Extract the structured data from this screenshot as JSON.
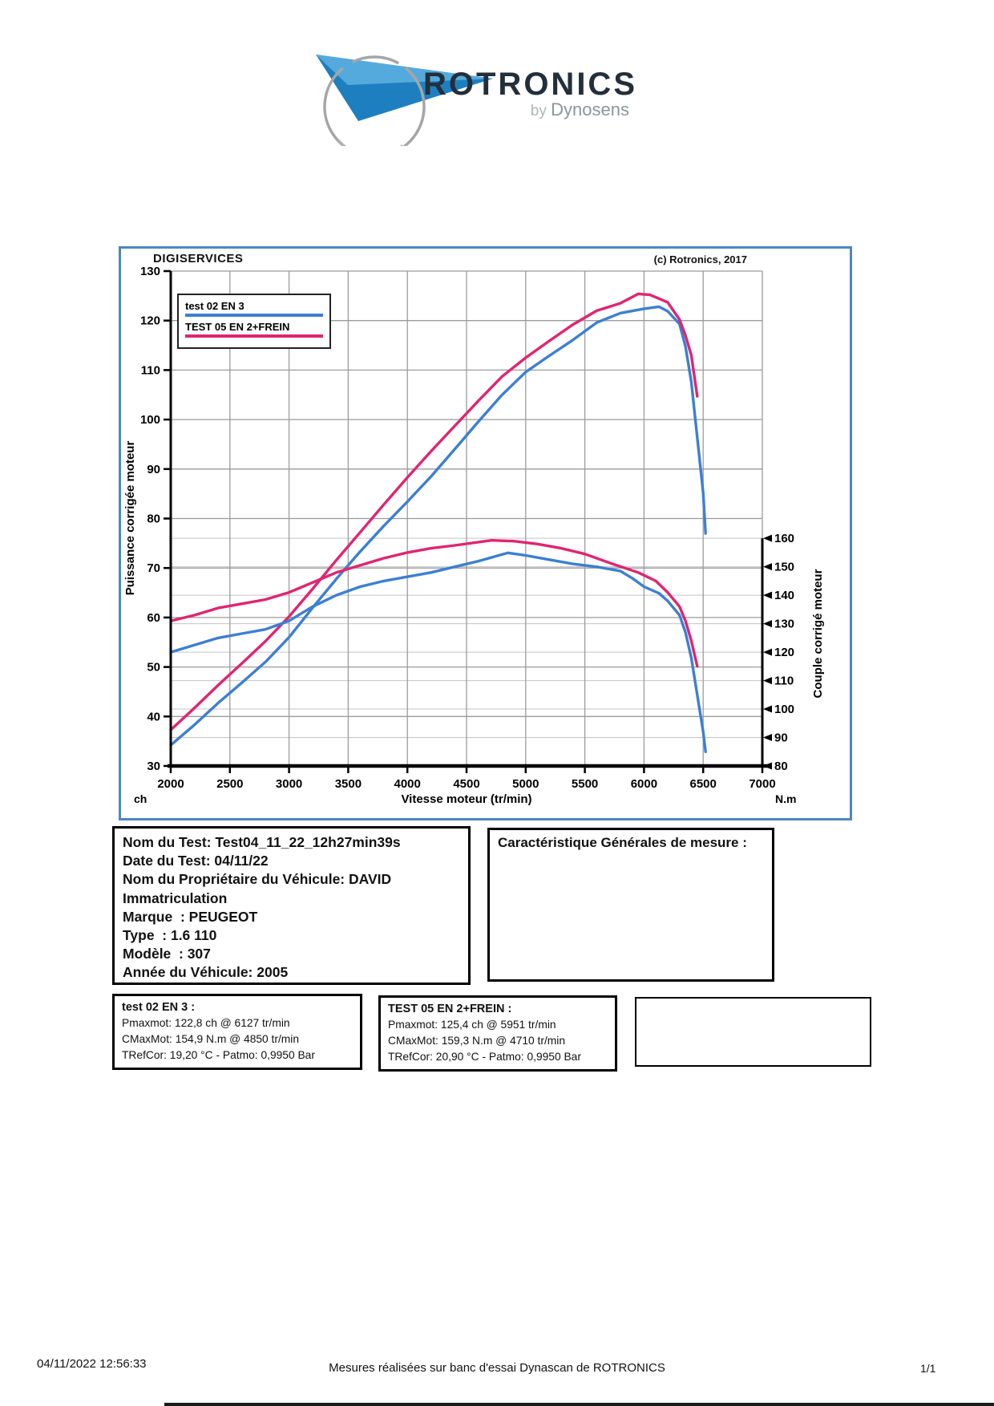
{
  "logo": {
    "brand": "ROTRONICS",
    "byline_by": "by ",
    "byline_name": "Dynosens"
  },
  "chart": {
    "watermark": "DIGISERVICES",
    "copyright": "(c) Rotronics, 2017",
    "legend": [
      {
        "label": "test 02 EN 3",
        "color": "#3d7fd2"
      },
      {
        "label": "TEST 05 EN 2+FREIN",
        "color": "#e02570"
      }
    ]
  },
  "chart_data": {
    "type": "line",
    "xlabel": "Vitesse moteur (tr/min)",
    "ylabel_left": "Puissance corrigée moteur",
    "ylabel_right": "Couple corrigé moteur",
    "left_unit": "ch",
    "right_unit": "N.m",
    "xlim": [
      2000,
      7000
    ],
    "ylim_left": [
      30,
      130
    ],
    "ylim_right": [
      80,
      160
    ],
    "right_axis_top_ch": 76,
    "x_ticks": [
      2000,
      2500,
      3000,
      3500,
      4000,
      4500,
      5000,
      5500,
      6000,
      6500,
      7000
    ],
    "y_ticks_left": [
      130,
      120,
      110,
      100,
      90,
      80,
      70,
      60,
      50,
      40,
      30
    ],
    "y_ticks_right": [
      160,
      150,
      140,
      130,
      120,
      110,
      100,
      90,
      80
    ],
    "grid": true,
    "legend_position": "top-left",
    "series": [
      {
        "name": "test 02 EN 3 - puissance (ch)",
        "axis": "left",
        "color": "#3d7fd2",
        "points": [
          [
            2000,
            34.2
          ],
          [
            2200,
            38.3
          ],
          [
            2400,
            42.7
          ],
          [
            2600,
            46.8
          ],
          [
            2800,
            51.0
          ],
          [
            3000,
            56.0
          ],
          [
            3200,
            62.0
          ],
          [
            3400,
            67.8
          ],
          [
            3600,
            73.3
          ],
          [
            3800,
            78.5
          ],
          [
            4000,
            83.4
          ],
          [
            4200,
            88.5
          ],
          [
            4400,
            94.0
          ],
          [
            4600,
            99.6
          ],
          [
            4800,
            105.0
          ],
          [
            5000,
            109.6
          ],
          [
            5200,
            112.9
          ],
          [
            5400,
            116.1
          ],
          [
            5600,
            119.6
          ],
          [
            5800,
            121.5
          ],
          [
            6000,
            122.4
          ],
          [
            6127,
            122.8
          ],
          [
            6200,
            121.9
          ],
          [
            6300,
            119.3
          ],
          [
            6350,
            114.8
          ],
          [
            6400,
            107.6
          ],
          [
            6450,
            96.4
          ],
          [
            6500,
            85.2
          ],
          [
            6520,
            77.0
          ]
        ]
      },
      {
        "name": "TEST 05 EN 2+FREIN - puissance (ch)",
        "axis": "left",
        "color": "#e02570",
        "points": [
          [
            2000,
            37.3
          ],
          [
            2200,
            41.7
          ],
          [
            2400,
            46.3
          ],
          [
            2600,
            50.7
          ],
          [
            2800,
            55.2
          ],
          [
            3000,
            60.2
          ],
          [
            3200,
            65.8
          ],
          [
            3400,
            71.6
          ],
          [
            3600,
            77.2
          ],
          [
            3800,
            82.8
          ],
          [
            4000,
            88.3
          ],
          [
            4200,
            93.6
          ],
          [
            4400,
            98.7
          ],
          [
            4600,
            103.8
          ],
          [
            4800,
            108.7
          ],
          [
            5000,
            112.5
          ],
          [
            5200,
            115.9
          ],
          [
            5400,
            119.2
          ],
          [
            5600,
            122.0
          ],
          [
            5800,
            123.5
          ],
          [
            5951,
            125.4
          ],
          [
            6050,
            125.2
          ],
          [
            6200,
            123.7
          ],
          [
            6300,
            120.2
          ],
          [
            6350,
            117.0
          ],
          [
            6400,
            113.0
          ],
          [
            6450,
            104.7
          ]
        ]
      },
      {
        "name": "test 02 EN 3 - couple (N.m)",
        "axis": "right",
        "color": "#3d7fd2",
        "points": [
          [
            2000,
            120
          ],
          [
            2200,
            122.5
          ],
          [
            2400,
            125
          ],
          [
            2600,
            126.5
          ],
          [
            2800,
            128
          ],
          [
            3000,
            131
          ],
          [
            3200,
            136
          ],
          [
            3400,
            140
          ],
          [
            3600,
            143
          ],
          [
            3800,
            145
          ],
          [
            4000,
            146.5
          ],
          [
            4200,
            148
          ],
          [
            4400,
            150
          ],
          [
            4600,
            152
          ],
          [
            4850,
            154.9
          ],
          [
            5000,
            154
          ],
          [
            5200,
            152.5
          ],
          [
            5400,
            151
          ],
          [
            5600,
            150
          ],
          [
            5800,
            148.5
          ],
          [
            5900,
            146
          ],
          [
            6000,
            143
          ],
          [
            6127,
            140.7
          ],
          [
            6200,
            138
          ],
          [
            6300,
            133
          ],
          [
            6350,
            127
          ],
          [
            6400,
            118
          ],
          [
            6450,
            105
          ],
          [
            6500,
            92
          ],
          [
            6520,
            85
          ]
        ]
      },
      {
        "name": "TEST 05 EN 2+FREIN - couple (N.m)",
        "axis": "right",
        "color": "#e02570",
        "points": [
          [
            2000,
            131
          ],
          [
            2200,
            133
          ],
          [
            2400,
            135.5
          ],
          [
            2600,
            137
          ],
          [
            2800,
            138.5
          ],
          [
            3000,
            141
          ],
          [
            3200,
            144.5
          ],
          [
            3400,
            148
          ],
          [
            3600,
            150.5
          ],
          [
            3800,
            153
          ],
          [
            4000,
            155
          ],
          [
            4200,
            156.5
          ],
          [
            4400,
            157.5
          ],
          [
            4710,
            159.3
          ],
          [
            4900,
            159
          ],
          [
            5100,
            158
          ],
          [
            5300,
            156.5
          ],
          [
            5500,
            154.5
          ],
          [
            5700,
            151.5
          ],
          [
            5951,
            148
          ],
          [
            6100,
            145
          ],
          [
            6200,
            141
          ],
          [
            6300,
            136
          ],
          [
            6350,
            131
          ],
          [
            6400,
            124
          ],
          [
            6450,
            115
          ]
        ]
      }
    ]
  },
  "test_info": {
    "lines": [
      "Nom du Test: Test04_11_22_12h27min39s",
      "Date du Test: 04/11/22",
      "Nom du Propriétaire du Véhicule: DAVID",
      "Immatriculation",
      "Marque  : PEUGEOT",
      "Type  : 1.6 110",
      "Modèle  : 307",
      "Année du Véhicule: 2005"
    ]
  },
  "caracteristiques": {
    "title": "Caractéristique Générales de mesure :"
  },
  "results": [
    {
      "title": "test 02 EN 3 :",
      "lines": [
        "Pmaxmot: 122,8 ch @ 6127 tr/min",
        "CMaxMot: 154,9 N.m @ 4850 tr/min",
        "TRefCor: 19,20 °C - Patmo: 0,9950 Bar"
      ]
    },
    {
      "title": "TEST 05 EN 2+FREIN :",
      "lines": [
        "Pmaxmot: 125,4 ch @ 5951 tr/min",
        "CMaxMot: 159,3 N.m @ 4710 tr/min",
        "TRefCor: 20,90 °C - Patmo: 0,9950 Bar"
      ]
    }
  ],
  "footer": {
    "datetime": "04/11/2022 12:56:33",
    "note": "Mesures réalisées sur banc d'essai Dynascan de ROTRONICS",
    "page": "1/1"
  }
}
